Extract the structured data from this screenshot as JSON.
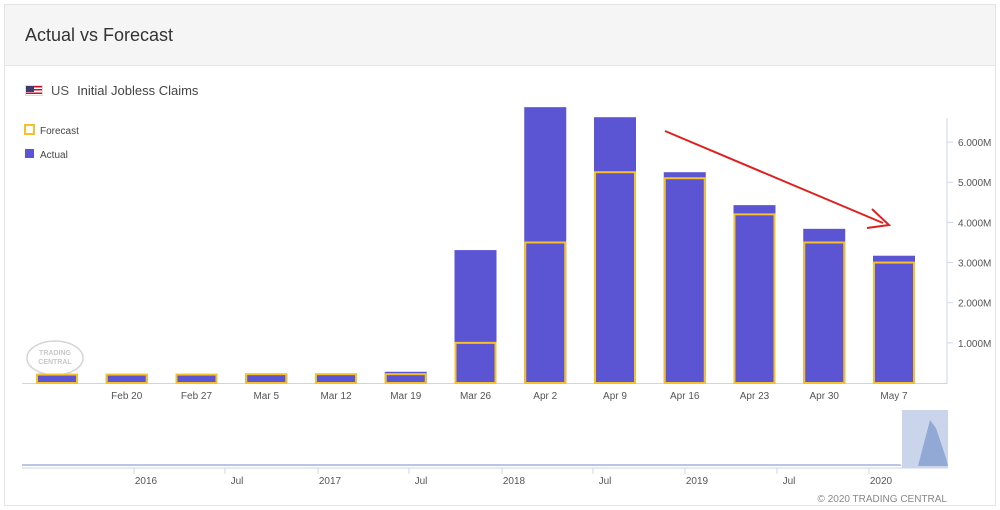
{
  "header": {
    "title": "Actual vs Forecast"
  },
  "subheader": {
    "country": "US",
    "indicator": "Initial Jobless Claims",
    "flag_icon": "us-flag-icon"
  },
  "legend": {
    "forecast_label": "Forecast",
    "actual_label": "Actual"
  },
  "watermark": {
    "line1": "TRADING",
    "line2": "CENTRAL"
  },
  "copyright": "© 2020 TRADING CENTRAL",
  "colors": {
    "actual": "#5b55d4",
    "forecast": "#f5c02a",
    "arrow": "#e02020",
    "navigator": "#b9c6e3"
  },
  "chart_data": {
    "type": "bar",
    "categories": [
      "",
      "Feb 20",
      "Feb 27",
      "Mar 5",
      "Mar 12",
      "Mar 19",
      "Mar 26",
      "Apr 2",
      "Apr 9",
      "Apr 16",
      "Apr 23",
      "Apr 30",
      "May 7"
    ],
    "series": [
      {
        "name": "Actual",
        "values": [
          0.21,
          0.21,
          0.22,
          0.22,
          0.21,
          0.28,
          3.31,
          6.87,
          6.62,
          5.25,
          4.43,
          3.84,
          3.17
        ]
      },
      {
        "name": "Forecast",
        "values": [
          0.21,
          0.21,
          0.21,
          0.22,
          0.22,
          0.22,
          1.0,
          3.5,
          5.25,
          5.1,
          4.2,
          3.5,
          3.0
        ]
      }
    ],
    "yticks": [
      {
        "value": 1.0,
        "label": "1.000M"
      },
      {
        "value": 2.0,
        "label": "2.000M"
      },
      {
        "value": 3.0,
        "label": "3.000M"
      },
      {
        "value": 4.0,
        "label": "4.000M"
      },
      {
        "value": 5.0,
        "label": "5.000M"
      },
      {
        "value": 6.0,
        "label": "6.000M"
      }
    ],
    "ylim": [
      0,
      6.6
    ],
    "y_axis_position": "right",
    "legend_position": "top-left",
    "annotation": "red arrow pointing down-right from Apr 9 to May 7",
    "navigator": {
      "labels": [
        "2016",
        "Jul",
        "2017",
        "Jul",
        "2018",
        "Jul",
        "2019",
        "Jul",
        "2020"
      ],
      "selected_range": "latest"
    }
  }
}
